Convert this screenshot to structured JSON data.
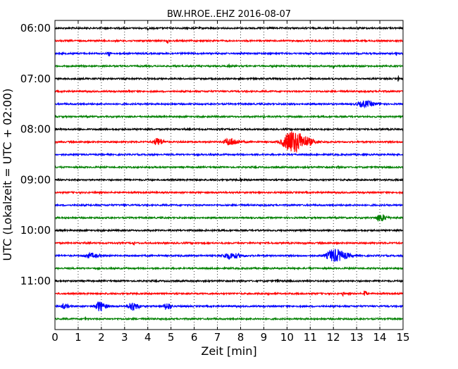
{
  "chart_data": {
    "type": "line",
    "title": "BW.HROE..EHZ 2016-08-07",
    "xlabel": "Zeit  [min]",
    "ylabel": "UTC (Lokalzeit = UTC + 02:00)",
    "xlim": [
      0,
      15
    ],
    "x_ticks": [
      0,
      1,
      2,
      3,
      4,
      5,
      6,
      7,
      8,
      9,
      10,
      11,
      12,
      13,
      14,
      15
    ],
    "x_grid": true,
    "y_tick_labels": [
      "06:00",
      "07:00",
      "08:00",
      "09:00",
      "10:00",
      "11:00"
    ],
    "trace_colors": [
      "#000000",
      "#ff0000",
      "#0000ff",
      "#008000"
    ],
    "trace_interval_min": 15,
    "series": [
      {
        "start": "06:00",
        "color": "#000000",
        "events": [
          {
            "t": 4.0,
            "amp": 2.5,
            "dur": 0.05
          },
          {
            "t": 11.8,
            "amp": 2.5,
            "dur": 0.05
          }
        ]
      },
      {
        "start": "06:15",
        "color": "#ff0000",
        "events": [
          {
            "t": 4.85,
            "amp": 4,
            "dur": 0.04
          }
        ]
      },
      {
        "start": "06:30",
        "color": "#0000ff",
        "events": [
          {
            "t": 2.3,
            "amp": 4,
            "dur": 0.1
          },
          {
            "t": 14.7,
            "amp": 3,
            "dur": 0.05
          }
        ]
      },
      {
        "start": "06:45",
        "color": "#008000",
        "events": [
          {
            "t": 7.5,
            "amp": 2.5,
            "dur": 0.05
          },
          {
            "t": 12.0,
            "amp": 2.5,
            "dur": 0.05
          }
        ]
      },
      {
        "start": "07:00",
        "color": "#000000",
        "events": [
          {
            "t": 14.8,
            "amp": 4,
            "dur": 0.04
          }
        ]
      },
      {
        "start": "07:15",
        "color": "#ff0000",
        "events": [
          {
            "t": 3.2,
            "amp": 2.5,
            "dur": 0.05
          },
          {
            "t": 14.0,
            "amp": 2.5,
            "dur": 0.05
          }
        ]
      },
      {
        "start": "07:30",
        "color": "#0000ff",
        "events": [
          {
            "t": 13.3,
            "amp": 4,
            "dur": 0.7
          }
        ]
      },
      {
        "start": "07:45",
        "color": "#008000",
        "events": [
          {
            "t": 9.0,
            "amp": 2.5,
            "dur": 0.05
          }
        ]
      },
      {
        "start": "08:00",
        "color": "#000000",
        "events": [
          {
            "t": 5.8,
            "amp": 2.5,
            "dur": 0.05
          }
        ]
      },
      {
        "start": "08:15",
        "color": "#ff0000",
        "events": [
          {
            "t": 4.4,
            "amp": 5,
            "dur": 0.4
          },
          {
            "t": 7.5,
            "amp": 5,
            "dur": 0.6
          },
          {
            "t": 10.2,
            "amp": 16,
            "dur": 1.0
          }
        ]
      },
      {
        "start": "08:30",
        "color": "#0000ff",
        "events": []
      },
      {
        "start": "08:45",
        "color": "#008000",
        "events": [
          {
            "t": 12.2,
            "amp": 2.5,
            "dur": 0.05
          }
        ]
      },
      {
        "start": "09:00",
        "color": "#000000",
        "events": [
          {
            "t": 8.0,
            "amp": 2.5,
            "dur": 0.05
          }
        ]
      },
      {
        "start": "09:15",
        "color": "#ff0000",
        "events": []
      },
      {
        "start": "09:30",
        "color": "#0000ff",
        "events": [
          {
            "t": 3.0,
            "amp": 2.5,
            "dur": 0.05
          }
        ]
      },
      {
        "start": "09:45",
        "color": "#008000",
        "events": [
          {
            "t": 14.0,
            "amp": 5,
            "dur": 0.4
          }
        ]
      },
      {
        "start": "10:00",
        "color": "#000000",
        "events": [
          {
            "t": 6.5,
            "amp": 2.5,
            "dur": 0.05
          }
        ]
      },
      {
        "start": "10:15",
        "color": "#ff0000",
        "events": [
          {
            "t": 3.4,
            "amp": 4,
            "dur": 0.05
          }
        ]
      },
      {
        "start": "10:30",
        "color": "#0000ff",
        "events": [
          {
            "t": 1.5,
            "amp": 3,
            "dur": 0.6
          },
          {
            "t": 7.5,
            "amp": 4,
            "dur": 0.7
          },
          {
            "t": 12.0,
            "amp": 9,
            "dur": 0.8
          }
        ]
      },
      {
        "start": "10:45",
        "color": "#008000",
        "events": [
          {
            "t": 11.0,
            "amp": 2.5,
            "dur": 0.05
          }
        ]
      },
      {
        "start": "11:00",
        "color": "#000000",
        "events": [
          {
            "t": 9.6,
            "amp": 2.5,
            "dur": 0.05
          }
        ]
      },
      {
        "start": "11:15",
        "color": "#ff0000",
        "events": [
          {
            "t": 9.2,
            "amp": 4,
            "dur": 0.05
          },
          {
            "t": 12.4,
            "amp": 3,
            "dur": 0.05
          },
          {
            "t": 13.35,
            "amp": 7,
            "dur": 0.1
          }
        ]
      },
      {
        "start": "11:30",
        "color": "#0000ff",
        "events": [
          {
            "t": 0.4,
            "amp": 3,
            "dur": 0.3
          },
          {
            "t": 1.9,
            "amp": 7,
            "dur": 0.4
          },
          {
            "t": 3.3,
            "amp": 6,
            "dur": 0.4
          },
          {
            "t": 4.8,
            "amp": 5,
            "dur": 0.3
          }
        ]
      },
      {
        "start": "11:45",
        "color": "#008000",
        "events": [
          {
            "t": 1.3,
            "amp": 4,
            "dur": 0.05
          }
        ]
      }
    ]
  }
}
